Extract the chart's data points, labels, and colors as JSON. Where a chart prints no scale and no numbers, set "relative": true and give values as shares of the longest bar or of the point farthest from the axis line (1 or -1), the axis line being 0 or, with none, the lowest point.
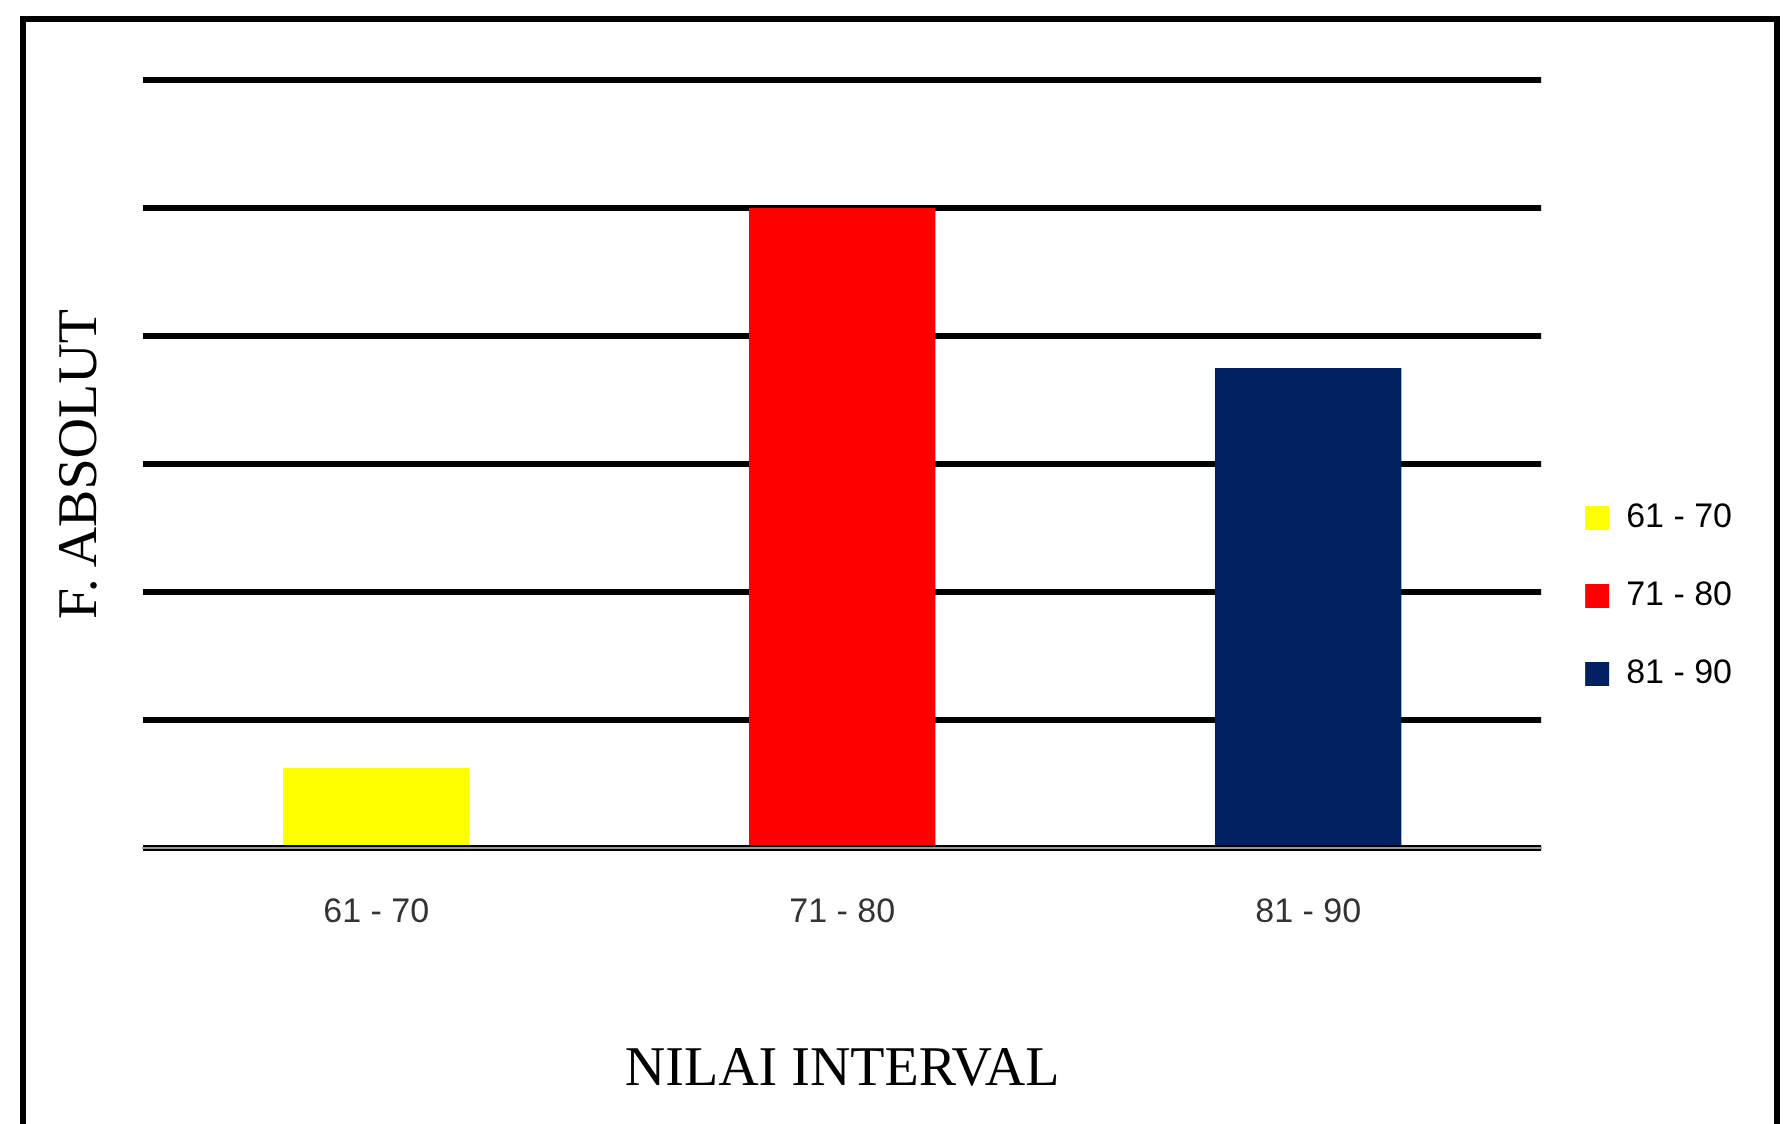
{
  "chart_data": {
    "type": "bar",
    "xlabel": "NILAI INTERVAL",
    "ylabel": "F. ABSOLUT",
    "categories": [
      "61 - 70",
      "71 - 80",
      "81 - 90"
    ],
    "series": [
      {
        "name": "61 - 70",
        "color": "#ffff00",
        "values": [
          0.125,
          null,
          null
        ]
      },
      {
        "name": "71 - 80",
        "color": "#ff0000",
        "values": [
          null,
          1,
          null
        ]
      },
      {
        "name": "81 - 90",
        "color": "#002060",
        "values": [
          null,
          null,
          0.75
        ]
      }
    ],
    "relative": true,
    "grid": "y",
    "legend": "right"
  }
}
